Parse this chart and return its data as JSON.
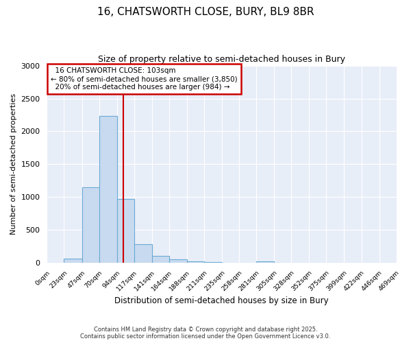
{
  "title1": "16, CHATSWORTH CLOSE, BURY, BL9 8BR",
  "title2": "Size of property relative to semi-detached houses in Bury",
  "xlabel": "Distribution of semi-detached houses by size in Bury",
  "ylabel": "Number of semi-detached properties",
  "bin_labels": [
    "0sqm",
    "23sqm",
    "47sqm",
    "70sqm",
    "94sqm",
    "117sqm",
    "141sqm",
    "164sqm",
    "188sqm",
    "211sqm",
    "235sqm",
    "258sqm",
    "281sqm",
    "305sqm",
    "328sqm",
    "352sqm",
    "375sqm",
    "399sqm",
    "422sqm",
    "446sqm",
    "469sqm"
  ],
  "bin_edges": [
    0,
    23,
    47,
    70,
    94,
    117,
    141,
    164,
    188,
    211,
    235,
    258,
    281,
    305,
    328,
    352,
    375,
    399,
    422,
    446,
    469
  ],
  "bar_values": [
    0,
    60,
    1150,
    2230,
    975,
    280,
    105,
    50,
    20,
    10,
    5,
    2,
    20,
    0,
    0,
    0,
    0,
    0,
    0,
    0
  ],
  "bar_color": "#c8daf0",
  "bar_edge_color": "#6aaad4",
  "property_size": 103,
  "vline_color": "#cc0000",
  "annotation_title": "16 CHATSWORTH CLOSE: 103sqm",
  "annotation_line1": "← 80% of semi-detached houses are smaller (3,850)",
  "annotation_line2": "20% of semi-detached houses are larger (984) →",
  "annotation_box_color": "#cc0000",
  "ylim": [
    0,
    3000
  ],
  "yticks": [
    0,
    500,
    1000,
    1500,
    2000,
    2500,
    3000
  ],
  "footer1": "Contains HM Land Registry data © Crown copyright and database right 2025.",
  "footer2": "Contains public sector information licensed under the Open Government Licence v3.0.",
  "fig_bg_color": "#ffffff",
  "plot_bg_color": "#e8eef8"
}
